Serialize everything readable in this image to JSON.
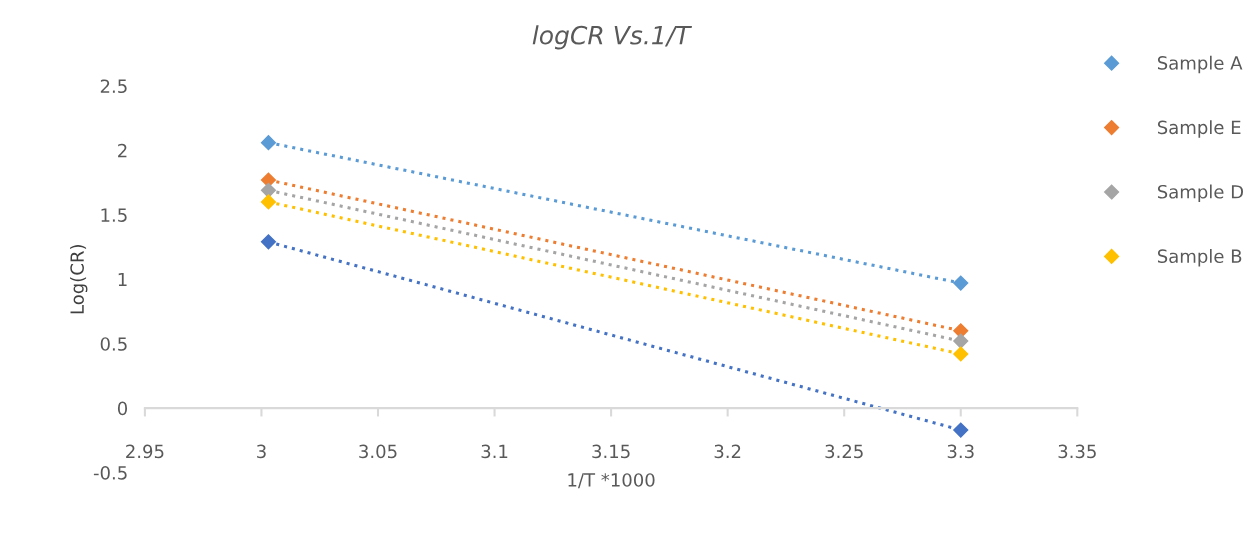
{
  "chart_data": {
    "type": "line",
    "title": "logCR Vs.1/T",
    "xlabel": "1/T *1000",
    "ylabel": "Log(CR)",
    "x": [
      3.003,
      3.3
    ],
    "series": [
      {
        "name": "Sample A",
        "color": "#5b9bd5",
        "values": [
          2.06,
          0.97
        ]
      },
      {
        "name": "Sample E",
        "color": "#ed7d31",
        "values": [
          1.77,
          0.6
        ]
      },
      {
        "name": "Sample D",
        "color": "#a5a5a5",
        "values": [
          1.69,
          0.52
        ]
      },
      {
        "name": "Sample B",
        "color": "#ffc000",
        "values": [
          1.6,
          0.42
        ]
      },
      {
        "color": "#4472c4",
        "values": [
          1.29,
          -0.17
        ]
      }
    ],
    "xlim": [
      2.95,
      3.35
    ],
    "xticks": [
      2.95,
      3,
      3.05,
      3.1,
      3.15,
      3.2,
      3.25,
      3.3,
      3.35
    ],
    "ylim": [
      -0.5,
      2.5
    ],
    "yticks": [
      -0.5,
      0,
      0.5,
      1,
      1.5,
      2,
      2.5
    ],
    "marker": "diamond",
    "line_style": "dotted",
    "grid": false,
    "legend": "top right"
  }
}
